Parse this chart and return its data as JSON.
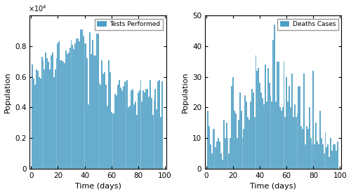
{
  "tests": [
    6800,
    5900,
    5500,
    6500,
    6400,
    6000,
    5900,
    7300,
    7100,
    6500,
    7600,
    7200,
    7000,
    6500,
    7400,
    7600,
    6000,
    6500,
    7200,
    8200,
    8300,
    7100,
    7100,
    7000,
    6900,
    7700,
    7500,
    7600,
    7900,
    8400,
    8100,
    7800,
    8200,
    8500,
    8500,
    8300,
    9100,
    9100,
    8700,
    8200,
    8200,
    7200,
    4200,
    8900,
    7500,
    8400,
    7400,
    7400,
    8800,
    8800,
    5600,
    5500,
    7100,
    6200,
    6300,
    5500,
    4100,
    7100,
    6300,
    3700,
    3600,
    3600,
    4900,
    4800,
    5500,
    5800,
    5300,
    5100,
    5400,
    5700,
    5600,
    5800,
    4000,
    4100,
    5100,
    5200,
    4200,
    4400,
    3500,
    5000,
    5100,
    5800,
    4400,
    5100,
    5000,
    5200,
    5200,
    4700,
    5800,
    4600,
    3500,
    4500,
    5200,
    3900,
    5700,
    5800,
    3400,
    5700
  ],
  "deaths": [
    19,
    14,
    8,
    5,
    13,
    13,
    7,
    9,
    10,
    9,
    5,
    3,
    16,
    10,
    15,
    10,
    5,
    10,
    27,
    30,
    19,
    18,
    10,
    16,
    25,
    19,
    10,
    13,
    24,
    22,
    17,
    16,
    22,
    26,
    25,
    17,
    37,
    32,
    33,
    28,
    25,
    23,
    21,
    34,
    22,
    33,
    28,
    24,
    22,
    42,
    47,
    22,
    35,
    35,
    20,
    19,
    20,
    35,
    17,
    30,
    22,
    27,
    20,
    31,
    17,
    21,
    17,
    18,
    27,
    27,
    14,
    13,
    31,
    8,
    14,
    13,
    20,
    10,
    8,
    32,
    8,
    15,
    9,
    8,
    19,
    10,
    8,
    5,
    12,
    7,
    8,
    4,
    10,
    6,
    8,
    8,
    6,
    9
  ],
  "bar_color": "#4d9ec4",
  "ylabel": "Population",
  "xlabel": "Time (days)",
  "legend1": "Tests Performed",
  "legend2": "Deaths Cases",
  "ylim1": [
    0,
    1.0
  ],
  "ylim2": [
    0,
    50
  ],
  "xlim": [
    -1,
    101
  ],
  "yticks1": [
    0,
    0.2,
    0.4,
    0.6,
    0.8
  ],
  "yticks2": [
    0,
    10,
    20,
    30,
    40,
    50
  ],
  "xticks": [
    0,
    20,
    40,
    60,
    80,
    100
  ],
  "scale_factor": 10000,
  "figure_width": 5.0,
  "figure_height": 2.77
}
